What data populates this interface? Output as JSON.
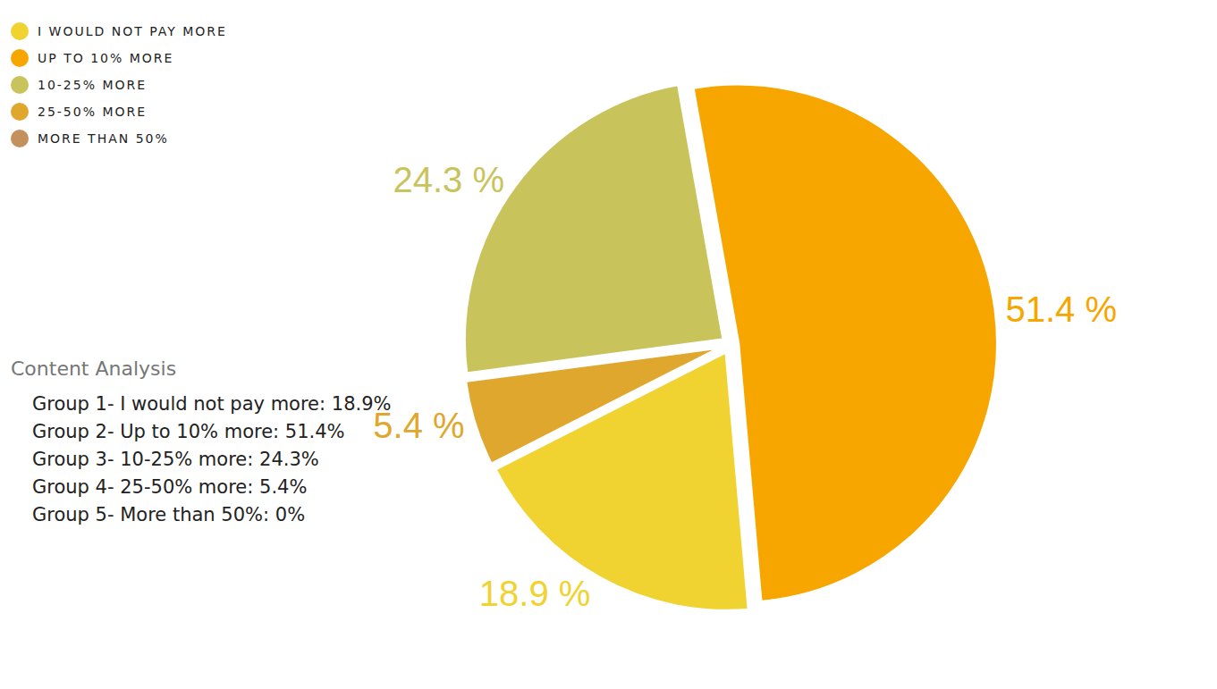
{
  "chart_data": {
    "type": "pie",
    "categories": [
      "I WOULD NOT PAY MORE",
      "UP TO 10% MORE",
      "10-25% MORE",
      "25-50% MORE",
      "MORE THAN 50%"
    ],
    "values": [
      18.9,
      51.4,
      24.3,
      5.4,
      0
    ],
    "value_labels": [
      "18.9 %",
      "51.4 %",
      "24.3 %",
      "5.4 %",
      null
    ],
    "colors": [
      "#f0d230",
      "#f7a600",
      "#c9c35c",
      "#e0a72e",
      "#c4915e"
    ],
    "data_labels": true,
    "legend": "upper left"
  },
  "text_panel": {
    "title": "Content Analysis",
    "lines": [
      "Group 1- I would not pay more: 18.9%",
      "Group 2- Up to 10% more: 51.4%",
      "Group 3- 10-25% more: 24.3%",
      "Group 4- 25-50% more: 5.4%",
      "Group 5- More than 50%: 0%"
    ]
  }
}
